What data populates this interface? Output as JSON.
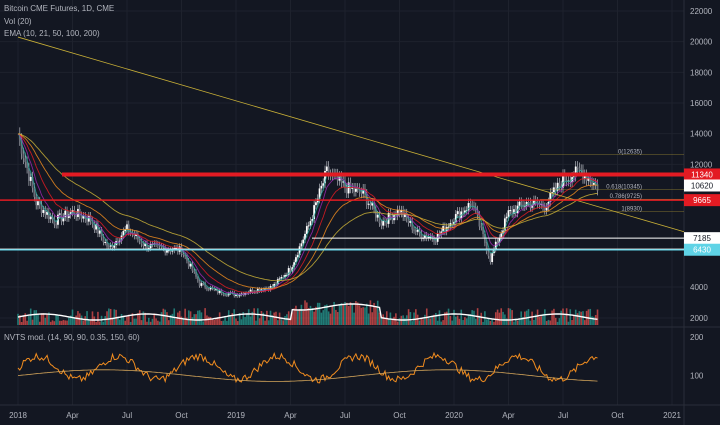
{
  "header": {
    "title": "Bitcoin CME Futures, 1D, CME",
    "vol_label": "Vol (20)",
    "ema_label": "EMA (10, 21, 50, 100, 200)"
  },
  "indicator": {
    "label": "NVTS mod. (14, 90, 90, 0.35, 150, 60)",
    "axis_ticks": [
      "200",
      "100"
    ]
  },
  "price_axis": {
    "ticks": [
      "22000",
      "20000",
      "18000",
      "16000",
      "14000",
      "12000",
      "4000",
      "2000"
    ]
  },
  "time_axis": {
    "ticks": [
      "2018",
      "Apr",
      "Jul",
      "Oct",
      "2019",
      "Apr",
      "Jul",
      "Oct",
      "2020",
      "Apr",
      "Jul",
      "Oct",
      "2021"
    ]
  },
  "price_tags": [
    {
      "value": "11340",
      "color": "#e31b23"
    },
    {
      "value": "10620",
      "color": "#ffffff"
    },
    {
      "value": "9665",
      "color": "#e31b23"
    },
    {
      "value": "7185",
      "color": "#ffffff"
    },
    {
      "value": "6430",
      "color": "#5fd3e6"
    }
  ],
  "fib_labels": [
    "0(12635)",
    "0.618(10345)",
    "0.786(9725)",
    "1(8930)"
  ],
  "colors": {
    "background": "#131722",
    "resistance": "#e31b23",
    "support": "#5fd3e6",
    "trendline": "#c9b037",
    "volume_up": "#26a69a",
    "volume_down": "#ef5350",
    "indicator": "#f08c1f"
  },
  "chart_data": {
    "type": "line",
    "title": "Bitcoin CME Futures, 1D, CME",
    "x": [
      "2018-01",
      "2018-02",
      "2018-03",
      "2018-04",
      "2018-05",
      "2018-06",
      "2018-07",
      "2018-08",
      "2018-09",
      "2018-10",
      "2018-11",
      "2018-12",
      "2019-01",
      "2019-02",
      "2019-03",
      "2019-04",
      "2019-05",
      "2019-06",
      "2019-07",
      "2019-08",
      "2019-09",
      "2019-10",
      "2019-11",
      "2019-12",
      "2020-01",
      "2020-02",
      "2020-03",
      "2020-04",
      "2020-05",
      "2020-06",
      "2020-07",
      "2020-08",
      "2020-09"
    ],
    "series": [
      {
        "values": [
          14000,
          9500,
          8300,
          8900,
          8400,
          6500,
          7800,
          6700,
          6500,
          6400,
          4200,
          3700,
          3500,
          3800,
          4000,
          5200,
          8000,
          11500,
          10500,
          10100,
          8200,
          9000,
          7500,
          7200,
          8500,
          9500,
          5800,
          8800,
          9500,
          9300,
          11000,
          11600,
          10400
        ]
      }
    ],
    "ylim": [
      1000,
      22000
    ],
    "levels": [
      11340,
      10620,
      9665,
      7185,
      6430
    ]
  }
}
